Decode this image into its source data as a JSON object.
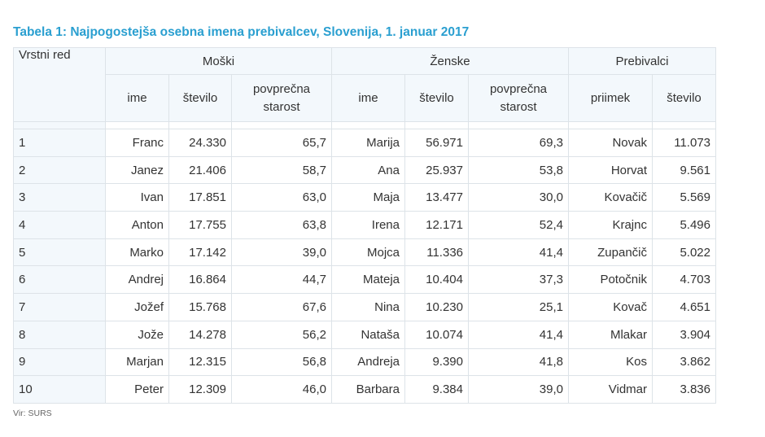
{
  "title": "Tabela 1: Najpogostejša osebna imena prebivalcev, Slovenija, 1. januar 2017",
  "colors": {
    "title": "#2a9fd0",
    "header_bg": "#f3f8fc",
    "border": "#dde3e8",
    "text": "#333333"
  },
  "table": {
    "rank_header": "Vrstni red",
    "groups": [
      {
        "label": "Moški",
        "columns": [
          "ime",
          "število",
          "povprečna starost"
        ]
      },
      {
        "label": "Ženske",
        "columns": [
          "ime",
          "število",
          "povprečna starost"
        ]
      },
      {
        "label": "Prebivalci",
        "columns": [
          "priimek",
          "število"
        ]
      }
    ],
    "rows": [
      {
        "rank": "1",
        "m_name": "Franc",
        "m_count": "24.330",
        "m_age": "65,7",
        "f_name": "Marija",
        "f_count": "56.971",
        "f_age": "69,3",
        "surname": "Novak",
        "s_count": "11.073"
      },
      {
        "rank": "2",
        "m_name": "Janez",
        "m_count": "21.406",
        "m_age": "58,7",
        "f_name": "Ana",
        "f_count": "25.937",
        "f_age": "53,8",
        "surname": "Horvat",
        "s_count": "9.561"
      },
      {
        "rank": "3",
        "m_name": "Ivan",
        "m_count": "17.851",
        "m_age": "63,0",
        "f_name": "Maja",
        "f_count": "13.477",
        "f_age": "30,0",
        "surname": "Kovačič",
        "s_count": "5.569"
      },
      {
        "rank": "4",
        "m_name": "Anton",
        "m_count": "17.755",
        "m_age": "63,8",
        "f_name": "Irena",
        "f_count": "12.171",
        "f_age": "52,4",
        "surname": "Krajnc",
        "s_count": "5.496"
      },
      {
        "rank": "5",
        "m_name": "Marko",
        "m_count": "17.142",
        "m_age": "39,0",
        "f_name": "Mojca",
        "f_count": "11.336",
        "f_age": "41,4",
        "surname": "Zupančič",
        "s_count": "5.022"
      },
      {
        "rank": "6",
        "m_name": "Andrej",
        "m_count": "16.864",
        "m_age": "44,7",
        "f_name": "Mateja",
        "f_count": "10.404",
        "f_age": "37,3",
        "surname": "Potočnik",
        "s_count": "4.703"
      },
      {
        "rank": "7",
        "m_name": "Jožef",
        "m_count": "15.768",
        "m_age": "67,6",
        "f_name": "Nina",
        "f_count": "10.230",
        "f_age": "25,1",
        "surname": "Kovač",
        "s_count": "4.651"
      },
      {
        "rank": "8",
        "m_name": "Jože",
        "m_count": "14.278",
        "m_age": "56,2",
        "f_name": "Nataša",
        "f_count": "10.074",
        "f_age": "41,4",
        "surname": "Mlakar",
        "s_count": "3.904"
      },
      {
        "rank": "9",
        "m_name": "Marjan",
        "m_count": "12.315",
        "m_age": "56,8",
        "f_name": "Andreja",
        "f_count": "9.390",
        "f_age": "41,8",
        "surname": "Kos",
        "s_count": "3.862"
      },
      {
        "rank": "10",
        "m_name": "Peter",
        "m_count": "12.309",
        "m_age": "46,0",
        "f_name": "Barbara",
        "f_count": "9.384",
        "f_age": "39,0",
        "surname": "Vidmar",
        "s_count": "3.836"
      }
    ]
  },
  "source": "Vir: SURS"
}
